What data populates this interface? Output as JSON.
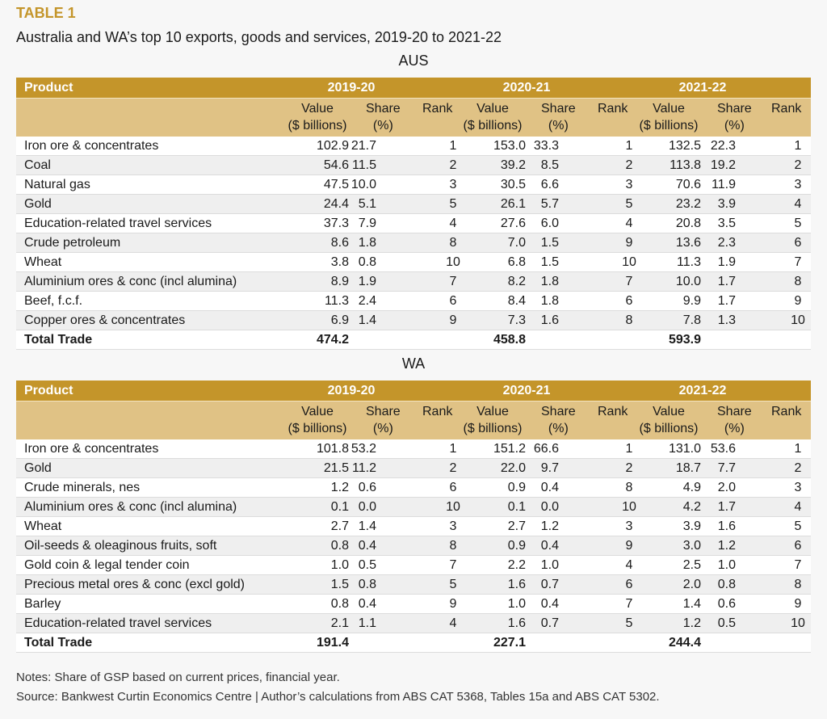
{
  "table_label": "TABLE 1",
  "subtitle": "Australia and WA’s top 10 exports, goods and services, 2019-20 to 2021-22",
  "headers": {
    "product": "Product",
    "years": [
      "2019-20",
      "2020-21",
      "2021-22"
    ],
    "value_l1": "Value",
    "value_l2": "($ billions)",
    "share_l1": "Share",
    "share_l2": "(%)",
    "rank": "Rank"
  },
  "colors": {
    "header": "#c4952a",
    "subheader": "#e0c285",
    "title": "#c4952a"
  },
  "tables": [
    {
      "region": "AUS",
      "rows": [
        [
          "Iron ore & concentrates",
          "102.9",
          "21.7",
          "1",
          "153.0",
          "33.3",
          "1",
          "132.5",
          "22.3",
          "1"
        ],
        [
          "Coal",
          "54.6",
          "11.5",
          "2",
          "39.2",
          "8.5",
          "2",
          "113.8",
          "19.2",
          "2"
        ],
        [
          "Natural gas",
          "47.5",
          "10.0",
          "3",
          "30.5",
          "6.6",
          "3",
          "70.6",
          "11.9",
          "3"
        ],
        [
          "Gold",
          "24.4",
          "5.1",
          "5",
          "26.1",
          "5.7",
          "5",
          "23.2",
          "3.9",
          "4"
        ],
        [
          "Education-related travel services",
          "37.3",
          "7.9",
          "4",
          "27.6",
          "6.0",
          "4",
          "20.8",
          "3.5",
          "5"
        ],
        [
          "Crude petroleum",
          "8.6",
          "1.8",
          "8",
          "7.0",
          "1.5",
          "9",
          "13.6",
          "2.3",
          "6"
        ],
        [
          "Wheat",
          "3.8",
          "0.8",
          "10",
          "6.8",
          "1.5",
          "10",
          "11.3",
          "1.9",
          "7"
        ],
        [
          "Aluminium ores & conc (incl alumina)",
          "8.9",
          "1.9",
          "7",
          "8.2",
          "1.8",
          "7",
          "10.0",
          "1.7",
          "8"
        ],
        [
          "Beef, f.c.f.",
          "11.3",
          "2.4",
          "6",
          "8.4",
          "1.8",
          "6",
          "9.9",
          "1.7",
          "9"
        ],
        [
          "Copper ores & concentrates",
          "6.9",
          "1.4",
          "9",
          "7.3",
          "1.6",
          "8",
          "7.8",
          "1.3",
          "10"
        ]
      ],
      "total": [
        "Total Trade",
        "474.2",
        "",
        "",
        "458.8",
        "",
        "",
        "593.9",
        "",
        ""
      ]
    },
    {
      "region": "WA",
      "rows": [
        [
          "Iron ore & concentrates",
          "101.8",
          "53.2",
          "1",
          "151.2",
          "66.6",
          "1",
          "131.0",
          "53.6",
          "1"
        ],
        [
          "Gold",
          "21.5",
          "11.2",
          "2",
          "22.0",
          "9.7",
          "2",
          "18.7",
          "7.7",
          "2"
        ],
        [
          "Crude minerals, nes",
          "1.2",
          "0.6",
          "6",
          "0.9",
          "0.4",
          "8",
          "4.9",
          "2.0",
          "3"
        ],
        [
          "Aluminium ores & conc (incl alumina)",
          "0.1",
          "0.0",
          "10",
          "0.1",
          "0.0",
          "10",
          "4.2",
          "1.7",
          "4"
        ],
        [
          "Wheat",
          "2.7",
          "1.4",
          "3",
          "2.7",
          "1.2",
          "3",
          "3.9",
          "1.6",
          "5"
        ],
        [
          "Oil-seeds & oleaginous fruits, soft",
          "0.8",
          "0.4",
          "8",
          "0.9",
          "0.4",
          "9",
          "3.0",
          "1.2",
          "6"
        ],
        [
          "Gold coin & legal tender coin",
          "1.0",
          "0.5",
          "7",
          "2.2",
          "1.0",
          "4",
          "2.5",
          "1.0",
          "7"
        ],
        [
          "Precious metal ores & conc (excl gold)",
          "1.5",
          "0.8",
          "5",
          "1.6",
          "0.7",
          "6",
          "2.0",
          "0.8",
          "8"
        ],
        [
          "Barley",
          "0.8",
          "0.4",
          "9",
          "1.0",
          "0.4",
          "7",
          "1.4",
          "0.6",
          "9"
        ],
        [
          "Education-related travel services",
          "2.1",
          "1.1",
          "4",
          "1.6",
          "0.7",
          "5",
          "1.2",
          "0.5",
          "10"
        ]
      ],
      "total": [
        "Total Trade",
        "191.4",
        "",
        "",
        "227.1",
        "",
        "",
        "244.4",
        "",
        ""
      ]
    }
  ],
  "notes": "Notes: Share of GSP based on current prices, financial year.",
  "source": "Source: Bankwest Curtin Economics Centre | Author’s calculations from ABS CAT 5368, Tables 15a and ABS CAT 5302."
}
